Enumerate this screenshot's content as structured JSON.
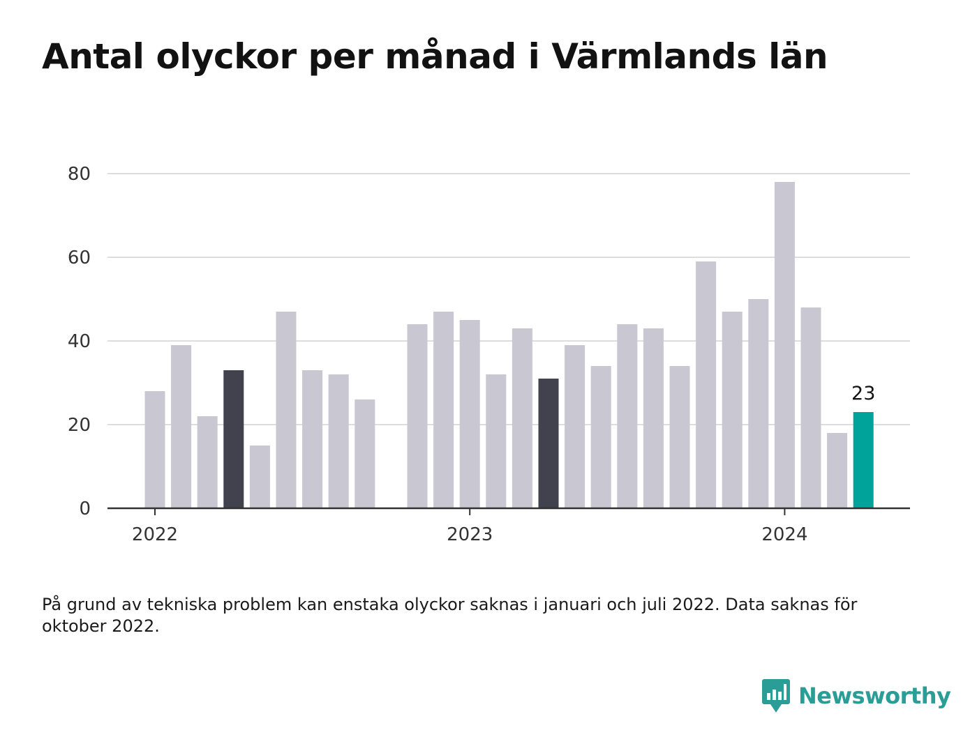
{
  "title": "Antal olyckor per månad i Värmlands län",
  "note": "På grund av tekniska problem kan enstaka olyckor saknas i januari och juli 2022. Data saknas för oktober 2022.",
  "brand": {
    "name": "Newsworthy",
    "color": "#2a9d97",
    "icon": "newsworthy-logo-icon"
  },
  "colors": {
    "bar": "#c8c7d2",
    "highlight": "#42414e",
    "latest": "#00a39a",
    "grid": "#dddddd",
    "axis": "#333333"
  },
  "chart_data": {
    "type": "bar",
    "x": [
      "2022-01",
      "2022-02",
      "2022-03",
      "2022-04",
      "2022-05",
      "2022-06",
      "2022-07",
      "2022-08",
      "2022-09",
      "2022-10",
      "2022-11",
      "2022-12",
      "2023-01",
      "2023-02",
      "2023-03",
      "2023-04",
      "2023-05",
      "2023-06",
      "2023-07",
      "2023-08",
      "2023-09",
      "2023-10",
      "2023-11",
      "2023-12",
      "2024-01",
      "2024-02",
      "2024-03",
      "2024-04"
    ],
    "values": [
      28,
      39,
      22,
      33,
      15,
      47,
      33,
      32,
      26,
      null,
      44,
      47,
      45,
      32,
      43,
      31,
      39,
      34,
      44,
      43,
      34,
      59,
      47,
      50,
      78,
      48,
      18,
      23
    ],
    "bar_styles": [
      "normal",
      "normal",
      "normal",
      "highlight",
      "normal",
      "normal",
      "normal",
      "normal",
      "normal",
      "missing",
      "normal",
      "normal",
      "normal",
      "normal",
      "normal",
      "highlight",
      "normal",
      "normal",
      "normal",
      "normal",
      "normal",
      "normal",
      "normal",
      "normal",
      "normal",
      "normal",
      "normal",
      "latest"
    ],
    "xticks": [
      {
        "x": "2022-01",
        "label": "2022"
      },
      {
        "x": "2023-01",
        "label": "2023"
      },
      {
        "x": "2024-01",
        "label": "2024"
      }
    ],
    "yticks": [
      0,
      20,
      40,
      60,
      80
    ],
    "ylim": [
      0,
      80
    ],
    "data_labels": [
      {
        "x": "2024-04",
        "text": "23"
      }
    ],
    "grid": true,
    "legend": "none"
  }
}
